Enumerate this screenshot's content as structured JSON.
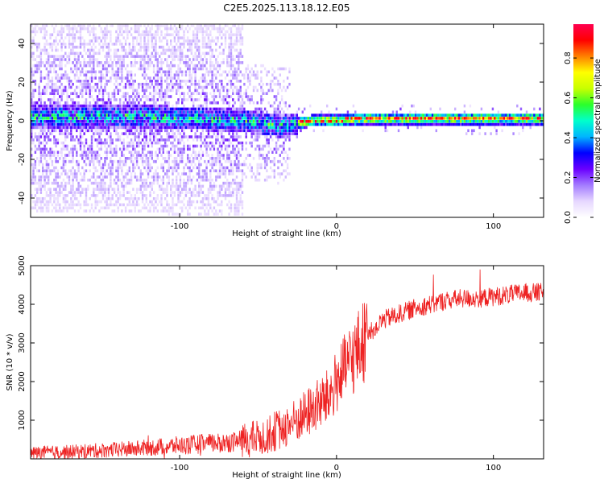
{
  "title": "C2E5.2025.113.18.12.E05",
  "chart_data": [
    {
      "type": "heatmap",
      "xlabel": "Height of straight line (km)",
      "ylabel": "Frequency (Hz)",
      "xlim": [
        -195,
        132
      ],
      "ylim": [
        -50,
        50
      ],
      "xticks": [
        -100,
        0,
        100
      ],
      "yticks": [
        -40,
        -20,
        0,
        20,
        40
      ],
      "colorbar": {
        "label": "Normalized spectral amplitude",
        "range": [
          0,
          0.97
        ],
        "ticks": [
          0.0,
          0.2,
          0.4,
          0.6,
          0.8
        ],
        "tick_labels": [
          "0.0",
          "0.2",
          "0.4",
          "0.6",
          "0.8"
        ],
        "colors": [
          "#ffffff",
          "#e6d7ff",
          "#a37bff",
          "#6a00ff",
          "#0000ff",
          "#00b4ff",
          "#00ffcc",
          "#2bff2b",
          "#c8ff00",
          "#ffff00",
          "#ff8000",
          "#ff0000",
          "#ff0050"
        ]
      },
      "description_of_signal": {
        "band_center_hz": [
          {
            "x": -120,
            "y": 2
          },
          {
            "x": -60,
            "y": 0
          },
          {
            "x": -35,
            "y": -3
          },
          {
            "x": -15,
            "y": 0
          },
          {
            "x": 0,
            "y": 0
          },
          {
            "x": 20,
            "y": 1
          },
          {
            "x": 60,
            "y": 1
          },
          {
            "x": 100,
            "y": 1
          },
          {
            "x": 132,
            "y": 1
          }
        ],
        "peak_amplitude": 0.95
      }
    },
    {
      "type": "line",
      "xlabel": "Height of straight line (km)",
      "ylabel": "SNR (10 * v/v)",
      "xlim": [
        -195,
        132
      ],
      "ylim": [
        0,
        5000
      ],
      "xticks": [
        -100,
        0,
        100
      ],
      "yticks": [
        1000,
        2000,
        3000,
        4000,
        5000
      ],
      "color": "#ee2222",
      "series": [
        {
          "name": "SNR",
          "x": [
            -195,
            -170,
            -150,
            -130,
            -110,
            -90,
            -70,
            -55,
            -45,
            -35,
            -25,
            -15,
            -5,
            0,
            10,
            20,
            30,
            40,
            50,
            60,
            70,
            80,
            90,
            100,
            110,
            120,
            132
          ],
          "y": [
            150,
            180,
            220,
            260,
            320,
            380,
            420,
            500,
            600,
            800,
            1000,
            1300,
            1600,
            2000,
            2600,
            3200,
            3600,
            3750,
            3900,
            4000,
            4100,
            4150,
            4150,
            4200,
            4250,
            4300,
            4300
          ]
        }
      ]
    }
  ]
}
